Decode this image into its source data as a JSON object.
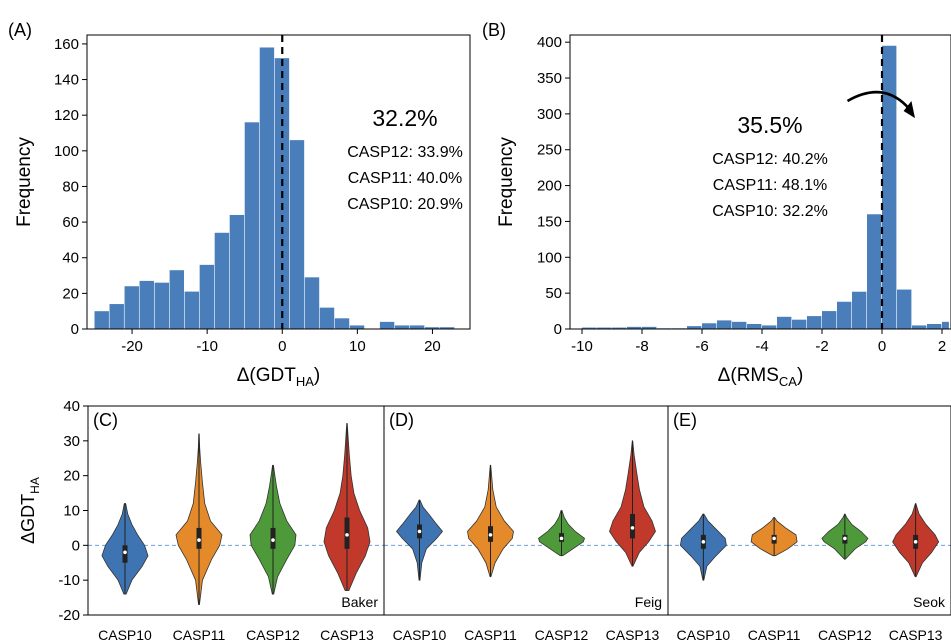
{
  "colors": {
    "bar": "#4a7ebb",
    "CASP10": "#3f74b3",
    "CASP11": "#e58a2b",
    "CASP12": "#4e9a3a",
    "CASP13": "#c0392b",
    "zero_line": "#6fa0d6"
  },
  "chart_data": [
    {
      "panel": "(A)",
      "type": "bar",
      "xlabel_main": "Δ(GDT",
      "xlabel_sub": "HA",
      "xlabel_close": ")",
      "ylabel": "Frequency",
      "xlim": [
        -26,
        25
      ],
      "ylim": [
        0,
        165
      ],
      "xticks": [
        -20,
        -10,
        0,
        10,
        20
      ],
      "yticks": [
        0,
        20,
        40,
        60,
        80,
        100,
        120,
        140,
        160
      ],
      "tick_labels_x": [
        "-20",
        "-10",
        "0",
        "10",
        "20"
      ],
      "tick_labels_y": [
        "0",
        "20",
        "40",
        "60",
        "80",
        "100",
        "120",
        "140",
        "160"
      ],
      "bin_edges": [
        -25,
        -23,
        -21,
        -19,
        -17,
        -15,
        -13,
        -11,
        -9,
        -7,
        -5,
        -3,
        -1,
        1,
        3,
        5,
        7,
        9,
        11,
        13,
        15,
        17,
        19,
        21,
        23
      ],
      "values": [
        10,
        14,
        24,
        27,
        26,
        33,
        21,
        36,
        54,
        64,
        116,
        158,
        152,
        106,
        29,
        12,
        6,
        2,
        0,
        4,
        2,
        2,
        1,
        1
      ],
      "vline_x": 0,
      "annotation_main": "32.2%",
      "annotations": [
        "CASP12: 33.9%",
        "CASP11: 40.0%",
        "CASP10: 20.9%"
      ]
    },
    {
      "panel": "(B)",
      "type": "bar",
      "xlabel_main": "Δ(RMS",
      "xlabel_sub": "CA",
      "xlabel_close": ")",
      "ylabel": "Frequency",
      "xlim": [
        -10.4,
        2.3
      ],
      "ylim": [
        0,
        410
      ],
      "xticks": [
        -10,
        -8,
        -6,
        -4,
        -2,
        0,
        2
      ],
      "yticks": [
        0,
        50,
        100,
        150,
        200,
        250,
        300,
        350,
        400
      ],
      "tick_labels_x": [
        "-10",
        "-8",
        "-6",
        "-4",
        "-2",
        "0",
        "2"
      ],
      "tick_labels_y": [
        "0",
        "50",
        "100",
        "150",
        "200",
        "250",
        "300",
        "350",
        "400"
      ],
      "bin_edges": [
        -10,
        -9.5,
        -9,
        -8.5,
        -8,
        -7.5,
        -7,
        -6.5,
        -6,
        -5.5,
        -5,
        -4.5,
        -4,
        -3.5,
        -3,
        -2.5,
        -2,
        -1.5,
        -1,
        -0.5,
        0,
        0.5,
        1,
        1.5,
        2,
        2.25
      ],
      "values": [
        2,
        2,
        2,
        3,
        3,
        1,
        1,
        4,
        8,
        12,
        10,
        7,
        5,
        17,
        13,
        18,
        25,
        38,
        52,
        160,
        395,
        55,
        5,
        7,
        10
      ],
      "vline_x": 0,
      "annotation_main": "35.5%",
      "annotations": [
        "CASP12: 40.2%",
        "CASP11: 48.1%",
        "CASP10: 32.2%"
      ]
    },
    {
      "panel": "violins",
      "type": "violin",
      "ylabel_main": "ΔGDT",
      "ylabel_sub": "HA",
      "ylim": [
        -20,
        40
      ],
      "yticks": [
        -20,
        -10,
        0,
        10,
        20,
        30,
        40
      ],
      "tick_labels_y": [
        "-20",
        "-10",
        "0",
        "10",
        "20",
        "30",
        "40"
      ],
      "categories": [
        "CASP10",
        "CASP11",
        "CASP12",
        "CASP13"
      ],
      "groups": [
        {
          "panel": "(C)",
          "name": "Baker",
          "violins": [
            {
              "category": "CASP10",
              "min": -14,
              "max": 12,
              "q1": -5,
              "median": -2,
              "q3": 0,
              "profile": [
                [
                  -14,
                  0.05
                ],
                [
                  -10,
                  0.3
                ],
                [
                  -6,
                  0.75
                ],
                [
                  -3,
                  1.0
                ],
                [
                  0,
                  0.85
                ],
                [
                  3,
                  0.55
                ],
                [
                  6,
                  0.3
                ],
                [
                  9,
                  0.12
                ],
                [
                  12,
                  0.03
                ]
              ]
            },
            {
              "category": "CASP11",
              "min": -17,
              "max": 32,
              "q1": -1,
              "median": 1.5,
              "q3": 5,
              "profile": [
                [
                  -17,
                  0.02
                ],
                [
                  -10,
                  0.15
                ],
                [
                  -4,
                  0.55
                ],
                [
                  0,
                  0.9
                ],
                [
                  3,
                  1.0
                ],
                [
                  7,
                  0.5
                ],
                [
                  12,
                  0.25
                ],
                [
                  18,
                  0.15
                ],
                [
                  24,
                  0.07
                ],
                [
                  28,
                  0.03
                ],
                [
                  32,
                  0.01
                ]
              ]
            },
            {
              "category": "CASP12",
              "min": -14,
              "max": 23,
              "q1": -1,
              "median": 1.5,
              "q3": 5,
              "profile": [
                [
                  -14,
                  0.03
                ],
                [
                  -9,
                  0.2
                ],
                [
                  -4,
                  0.6
                ],
                [
                  0,
                  0.95
                ],
                [
                  3,
                  1.0
                ],
                [
                  7,
                  0.6
                ],
                [
                  12,
                  0.3
                ],
                [
                  17,
                  0.15
                ],
                [
                  21,
                  0.06
                ],
                [
                  23,
                  0.02
                ]
              ]
            },
            {
              "category": "CASP13",
              "min": -13,
              "max": 35,
              "q1": -1,
              "median": 3,
              "q3": 8,
              "profile": [
                [
                  -13,
                  0.08
                ],
                [
                  -8,
                  0.4
                ],
                [
                  -3,
                  0.8
                ],
                [
                  1,
                  1.0
                ],
                [
                  5,
                  0.9
                ],
                [
                  10,
                  0.55
                ],
                [
                  15,
                  0.3
                ],
                [
                  20,
                  0.18
                ],
                [
                  26,
                  0.1
                ],
                [
                  31,
                  0.05
                ],
                [
                  35,
                  0.01
                ]
              ]
            }
          ]
        },
        {
          "panel": "(D)",
          "name": "Feig",
          "violins": [
            {
              "category": "CASP10",
              "min": -10,
              "max": 13,
              "q1": 2,
              "median": 4,
              "q3": 6,
              "profile": [
                [
                  -10,
                  0.02
                ],
                [
                  -5,
                  0.1
                ],
                [
                  -1,
                  0.3
                ],
                [
                  2,
                  0.75
                ],
                [
                  4,
                  1.0
                ],
                [
                  6,
                  0.75
                ],
                [
                  9,
                  0.4
                ],
                [
                  11,
                  0.15
                ],
                [
                  13,
                  0.02
                ]
              ]
            },
            {
              "category": "CASP11",
              "min": -9,
              "max": 23,
              "q1": 1,
              "median": 3,
              "q3": 5.5,
              "profile": [
                [
                  -9,
                  0.02
                ],
                [
                  -5,
                  0.2
                ],
                [
                  -1,
                  0.55
                ],
                [
                  2,
                  0.95
                ],
                [
                  4,
                  1.0
                ],
                [
                  7,
                  0.6
                ],
                [
                  11,
                  0.25
                ],
                [
                  16,
                  0.1
                ],
                [
                  20,
                  0.05
                ],
                [
                  23,
                  0.01
                ]
              ]
            },
            {
              "category": "CASP12",
              "min": -3,
              "max": 10,
              "q1": 1,
              "median": 2,
              "q3": 3.5,
              "profile": [
                [
                  -3,
                  0.05
                ],
                [
                  -1,
                  0.5
                ],
                [
                  1,
                  0.95
                ],
                [
                  2,
                  1.0
                ],
                [
                  4,
                  0.6
                ],
                [
                  6,
                  0.3
                ],
                [
                  8,
                  0.12
                ],
                [
                  10,
                  0.02
                ]
              ]
            },
            {
              "category": "CASP13",
              "min": -6,
              "max": 30,
              "q1": 2,
              "median": 5,
              "q3": 9,
              "profile": [
                [
                  -6,
                  0.02
                ],
                [
                  -2,
                  0.3
                ],
                [
                  1,
                  0.7
                ],
                [
                  4,
                  1.0
                ],
                [
                  7,
                  0.85
                ],
                [
                  11,
                  0.5
                ],
                [
                  16,
                  0.3
                ],
                [
                  21,
                  0.18
                ],
                [
                  26,
                  0.07
                ],
                [
                  30,
                  0.01
                ]
              ]
            }
          ]
        },
        {
          "panel": "(E)",
          "name": "Seok",
          "violins": [
            {
              "category": "CASP10",
              "min": -10,
              "max": 9,
              "q1": -1,
              "median": 1,
              "q3": 3,
              "profile": [
                [
                  -10,
                  0.02
                ],
                [
                  -6,
                  0.15
                ],
                [
                  -3,
                  0.55
                ],
                [
                  0,
                  1.0
                ],
                [
                  2,
                  0.95
                ],
                [
                  5,
                  0.5
                ],
                [
                  7,
                  0.2
                ],
                [
                  9,
                  0.02
                ]
              ]
            },
            {
              "category": "CASP11",
              "min": -3,
              "max": 8,
              "q1": 0.5,
              "median": 2,
              "q3": 3,
              "profile": [
                [
                  -3,
                  0.05
                ],
                [
                  -1,
                  0.6
                ],
                [
                  1,
                  1.0
                ],
                [
                  3,
                  0.95
                ],
                [
                  5,
                  0.5
                ],
                [
                  7,
                  0.12
                ],
                [
                  8,
                  0.02
                ]
              ]
            },
            {
              "category": "CASP12",
              "min": -4,
              "max": 9,
              "q1": 0.5,
              "median": 2,
              "q3": 3,
              "profile": [
                [
                  -4,
                  0.02
                ],
                [
                  -1,
                  0.45
                ],
                [
                  1,
                  0.9
                ],
                [
                  2,
                  1.0
                ],
                [
                  4,
                  0.7
                ],
                [
                  6,
                  0.3
                ],
                [
                  8,
                  0.08
                ],
                [
                  9,
                  0.01
                ]
              ]
            },
            {
              "category": "CASP13",
              "min": -9,
              "max": 12,
              "q1": -1,
              "median": 1,
              "q3": 3,
              "profile": [
                [
                  -9,
                  0.02
                ],
                [
                  -5,
                  0.3
                ],
                [
                  -2,
                  0.7
                ],
                [
                  1,
                  1.0
                ],
                [
                  3,
                  0.85
                ],
                [
                  6,
                  0.45
                ],
                [
                  9,
                  0.15
                ],
                [
                  12,
                  0.01
                ]
              ]
            }
          ]
        }
      ]
    }
  ]
}
